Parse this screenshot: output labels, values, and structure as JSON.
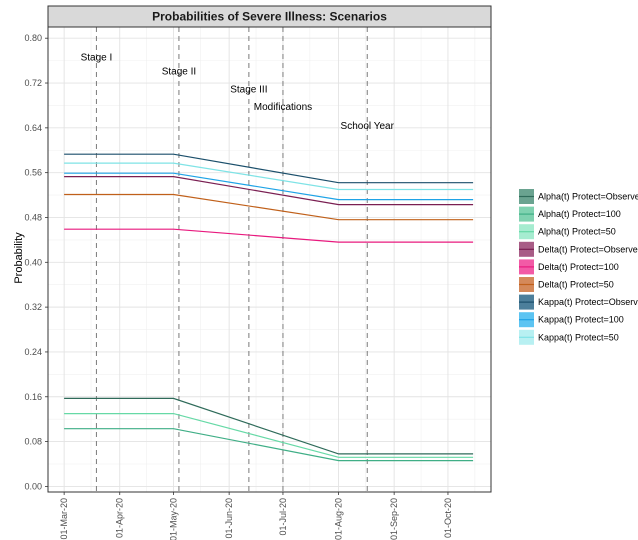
{
  "chart_data": {
    "type": "line",
    "title": "Probabilities of Severe Illness: Scenarios",
    "ylabel": "Probability",
    "xlabel": "",
    "ylim": [
      -0.01,
      0.82
    ],
    "xlim": [
      "2020-02-21",
      "2020-10-25"
    ],
    "grid": true,
    "legend_position": "right",
    "y_ticks": [
      {
        "value": 0.0,
        "label": "0.00"
      },
      {
        "value": 0.08,
        "label": "0.08"
      },
      {
        "value": 0.16,
        "label": "0.16"
      },
      {
        "value": 0.24,
        "label": "0.24"
      },
      {
        "value": 0.32,
        "label": "0.32"
      },
      {
        "value": 0.4,
        "label": "0.40"
      },
      {
        "value": 0.48,
        "label": "0.48"
      },
      {
        "value": 0.56,
        "label": "0.56"
      },
      {
        "value": 0.64,
        "label": "0.64"
      },
      {
        "value": 0.72,
        "label": "0.72"
      },
      {
        "value": 0.8,
        "label": "0.80"
      }
    ],
    "x_ticks": [
      {
        "date": "2020-03-01",
        "label": "01-Mar-20"
      },
      {
        "date": "2020-04-01",
        "label": "01-Apr-20"
      },
      {
        "date": "2020-05-01",
        "label": "01-May-20"
      },
      {
        "date": "2020-06-01",
        "label": "01-Jun-20"
      },
      {
        "date": "2020-07-01",
        "label": "01-Jul-20"
      },
      {
        "date": "2020-08-01",
        "label": "01-Aug-20"
      },
      {
        "date": "2020-09-01",
        "label": "01-Sep-20"
      },
      {
        "date": "2020-10-01",
        "label": "01-Oct-20"
      }
    ],
    "stages": [
      {
        "label": "Stage I",
        "date": "2020-03-19",
        "label_y": 0.76
      },
      {
        "label": "Stage II",
        "date": "2020-05-04",
        "label_y": 0.735
      },
      {
        "label": "Stage III",
        "date": "2020-06-12",
        "label_y": 0.703
      },
      {
        "label": "Modifications",
        "date": "2020-07-01",
        "label_y": 0.672
      },
      {
        "label": "School Year",
        "date": "2020-08-17",
        "label_y": 0.638
      }
    ],
    "series": [
      {
        "name": "Alpha(t) Protect=Observed",
        "color": "#2f6b5a",
        "fill": "#6aa390",
        "x": [
          "2020-03-01",
          "2020-05-01",
          "2020-08-01",
          "2020-10-15"
        ],
        "y": [
          0.157,
          0.157,
          0.058,
          0.058
        ]
      },
      {
        "name": "Alpha(t) Protect=100",
        "color": "#3fae86",
        "fill": "#7fd2b0",
        "x": [
          "2020-03-01",
          "2020-05-01",
          "2020-08-01",
          "2020-10-15"
        ],
        "y": [
          0.103,
          0.103,
          0.046,
          0.046
        ]
      },
      {
        "name": "Alpha(t) Protect=50",
        "color": "#66d9a6",
        "fill": "#a6ecd0",
        "x": [
          "2020-03-01",
          "2020-05-01",
          "2020-08-01",
          "2020-10-15"
        ],
        "y": [
          0.13,
          0.13,
          0.052,
          0.052
        ]
      },
      {
        "name": "Delta(t) Protect=Observed",
        "color": "#7a1f52",
        "fill": "#a85c86",
        "x": [
          "2020-03-01",
          "2020-05-01",
          "2020-08-01",
          "2020-10-15"
        ],
        "y": [
          0.553,
          0.553,
          0.503,
          0.503
        ]
      },
      {
        "name": "Delta(t) Protect=100",
        "color": "#e8197e",
        "fill": "#f25aa6",
        "x": [
          "2020-03-01",
          "2020-05-01",
          "2020-08-01",
          "2020-10-15"
        ],
        "y": [
          0.459,
          0.459,
          0.436,
          0.436
        ]
      },
      {
        "name": "Delta(t) Protect=50",
        "color": "#c0601a",
        "fill": "#d4895a",
        "x": [
          "2020-03-01",
          "2020-05-01",
          "2020-08-01",
          "2020-10-15"
        ],
        "y": [
          0.521,
          0.521,
          0.476,
          0.476
        ]
      },
      {
        "name": "Kappa(t) Protect=Observed",
        "color": "#1b4f6b",
        "fill": "#4c7f9b",
        "x": [
          "2020-03-01",
          "2020-05-01",
          "2020-08-01",
          "2020-10-15"
        ],
        "y": [
          0.593,
          0.593,
          0.542,
          0.542
        ]
      },
      {
        "name": "Kappa(t) Protect=100",
        "color": "#1ea3e6",
        "fill": "#5cc4f2",
        "x": [
          "2020-03-01",
          "2020-05-01",
          "2020-08-01",
          "2020-10-15"
        ],
        "y": [
          0.559,
          0.559,
          0.512,
          0.512
        ]
      },
      {
        "name": "Kappa(t) Protect=50",
        "color": "#7fe3e6",
        "fill": "#b8f0f2",
        "x": [
          "2020-03-01",
          "2020-05-01",
          "2020-08-01",
          "2020-10-15"
        ],
        "y": [
          0.577,
          0.577,
          0.53,
          0.53
        ]
      }
    ]
  }
}
